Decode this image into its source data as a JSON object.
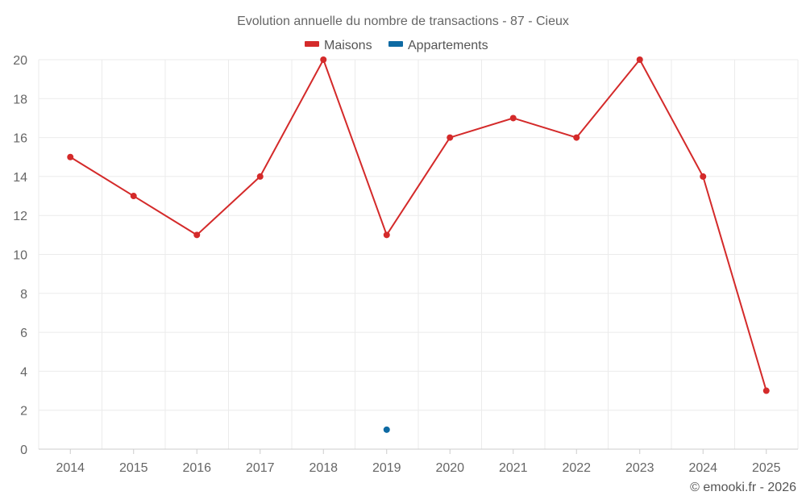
{
  "chart_data": {
    "type": "line",
    "title": "Evolution annuelle du nombre de transactions - 87 - Cieux",
    "categories": [
      "2014",
      "2015",
      "2016",
      "2017",
      "2018",
      "2019",
      "2020",
      "2021",
      "2022",
      "2023",
      "2024",
      "2025"
    ],
    "series": [
      {
        "name": "Maisons",
        "color": "#d42a2a",
        "values": [
          15,
          13,
          11,
          14,
          20,
          11,
          16,
          17,
          16,
          20,
          14,
          3
        ]
      },
      {
        "name": "Appartements",
        "color": "#0e6aa3",
        "values": [
          null,
          null,
          null,
          null,
          null,
          1,
          null,
          null,
          null,
          null,
          null,
          null
        ]
      }
    ],
    "ylim": [
      0,
      20
    ],
    "yticks": [
      0,
      2,
      4,
      6,
      8,
      10,
      12,
      14,
      16,
      18,
      20
    ],
    "xlabel": "",
    "ylabel": "",
    "grid": true,
    "legend_position": "top-center"
  },
  "credit": "© emooki.fr - 2026"
}
